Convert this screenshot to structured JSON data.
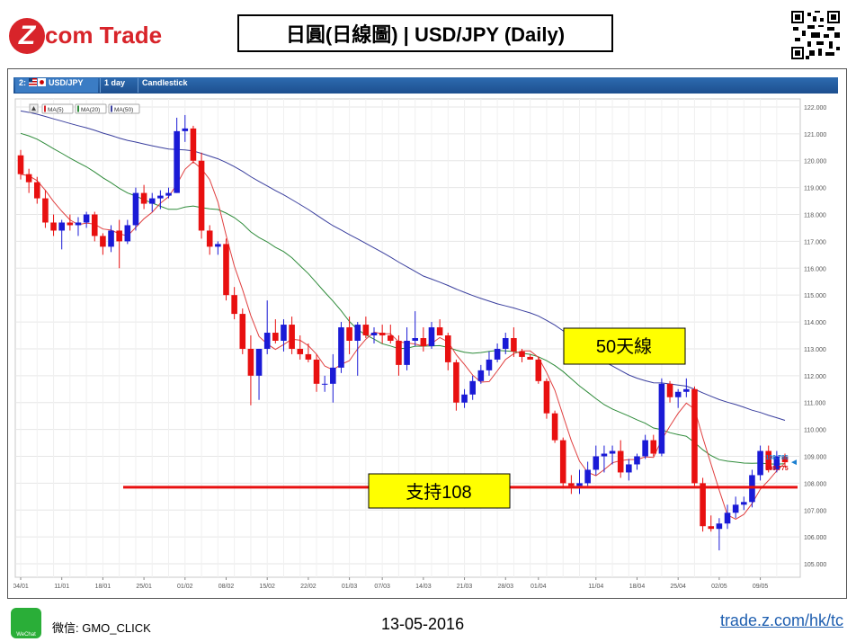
{
  "header": {
    "logo_text": "com Trade",
    "logo_letter": "Z",
    "title": "日圓(日線圖) | USD/JPY (Daily)"
  },
  "chart_toolbar": {
    "slot": "2:",
    "symbol": "USD/JPY",
    "interval": "1 day",
    "chart_type": "Candlestick"
  },
  "legend": {
    "items": [
      {
        "label": "MA(5)",
        "color": "#d8242a"
      },
      {
        "label": "MA(20)",
        "color": "#2e8b3a"
      },
      {
        "label": "MA(50)",
        "color": "#3a3f9e"
      }
    ]
  },
  "annotations": {
    "ma50_label": "50天線",
    "support_label": "支持108"
  },
  "price_tags": {
    "upper": "108.785",
    "lower": "108.775"
  },
  "footer": {
    "wechat": "微信: GMO_CLICK",
    "wechat_icon_label": "WeChat",
    "date": "13-05-2016",
    "link": "trade.z.com/hk/tc"
  },
  "colors": {
    "up": "#1a1ad6",
    "down": "#e81010",
    "ma5": "#e04040",
    "ma20": "#2e8b3a",
    "ma50": "#3a3f9e",
    "support": "#e81010",
    "label_bg": "#ffff00"
  },
  "chart_data": {
    "type": "candlestick",
    "symbol": "USD/JPY",
    "interval": "1 day",
    "ylim": [
      104.5,
      122.3
    ],
    "y_ticks": [
      "105.000",
      "106.000",
      "107.000",
      "108.000",
      "109.000",
      "110.000",
      "111.000",
      "112.000",
      "113.000",
      "114.000",
      "115.000",
      "116.000",
      "117.000",
      "118.000",
      "119.000",
      "120.000",
      "121.000",
      "122.000"
    ],
    "x_tick_labels": [
      "04/01",
      "11/01",
      "18/01",
      "25/01",
      "01/02",
      "08/02",
      "15/02",
      "22/02",
      "01/03",
      "07/03",
      "14/03",
      "21/03",
      "28/03",
      "01/04",
      "11/04",
      "18/04",
      "25/04",
      "02/05",
      "09/05"
    ],
    "x_tick_index": [
      0,
      5,
      10,
      15,
      20,
      25,
      30,
      35,
      40,
      44,
      49,
      54,
      59,
      63,
      70,
      75,
      80,
      85,
      90
    ],
    "support_level": 107.85,
    "candles": [
      {
        "o": 120.2,
        "h": 120.4,
        "l": 119.3,
        "c": 119.5
      },
      {
        "o": 119.5,
        "h": 119.7,
        "l": 118.8,
        "c": 119.2
      },
      {
        "o": 119.2,
        "h": 119.4,
        "l": 118.4,
        "c": 118.6
      },
      {
        "o": 118.6,
        "h": 118.9,
        "l": 117.5,
        "c": 117.7
      },
      {
        "o": 117.7,
        "h": 118.0,
        "l": 117.2,
        "c": 117.4
      },
      {
        "o": 117.4,
        "h": 117.8,
        "l": 116.7,
        "c": 117.7
      },
      {
        "o": 117.7,
        "h": 118.0,
        "l": 117.4,
        "c": 117.6
      },
      {
        "o": 117.6,
        "h": 117.9,
        "l": 117.2,
        "c": 117.7
      },
      {
        "o": 117.7,
        "h": 118.1,
        "l": 117.5,
        "c": 118.0
      },
      {
        "o": 118.0,
        "h": 118.1,
        "l": 117.0,
        "c": 117.2
      },
      {
        "o": 117.2,
        "h": 117.3,
        "l": 116.5,
        "c": 116.8
      },
      {
        "o": 116.8,
        "h": 117.6,
        "l": 116.6,
        "c": 117.4
      },
      {
        "o": 117.4,
        "h": 117.8,
        "l": 116.0,
        "c": 117.0
      },
      {
        "o": 117.0,
        "h": 117.8,
        "l": 116.9,
        "c": 117.6
      },
      {
        "o": 117.6,
        "h": 119.0,
        "l": 117.4,
        "c": 118.8
      },
      {
        "o": 118.8,
        "h": 119.1,
        "l": 118.2,
        "c": 118.4
      },
      {
        "o": 118.4,
        "h": 118.8,
        "l": 118.1,
        "c": 118.6
      },
      {
        "o": 118.6,
        "h": 118.9,
        "l": 118.2,
        "c": 118.7
      },
      {
        "o": 118.7,
        "h": 119.0,
        "l": 118.6,
        "c": 118.8
      },
      {
        "o": 118.8,
        "h": 121.6,
        "l": 118.8,
        "c": 121.1
      },
      {
        "o": 121.1,
        "h": 121.7,
        "l": 120.7,
        "c": 121.2
      },
      {
        "o": 121.2,
        "h": 121.3,
        "l": 119.9,
        "c": 120.0
      },
      {
        "o": 120.0,
        "h": 120.3,
        "l": 117.1,
        "c": 117.4
      },
      {
        "o": 117.4,
        "h": 117.6,
        "l": 116.5,
        "c": 116.8
      },
      {
        "o": 116.8,
        "h": 117.0,
        "l": 116.5,
        "c": 116.9
      },
      {
        "o": 116.9,
        "h": 117.1,
        "l": 114.8,
        "c": 115.0
      },
      {
        "o": 115.0,
        "h": 115.3,
        "l": 114.1,
        "c": 114.3
      },
      {
        "o": 114.3,
        "h": 114.5,
        "l": 112.8,
        "c": 113.0
      },
      {
        "o": 113.0,
        "h": 113.5,
        "l": 110.9,
        "c": 112.0
      },
      {
        "o": 112.0,
        "h": 113.0,
        "l": 111.1,
        "c": 113.0
      },
      {
        "o": 113.0,
        "h": 114.8,
        "l": 112.8,
        "c": 113.6
      },
      {
        "o": 113.6,
        "h": 114.1,
        "l": 113.2,
        "c": 113.3
      },
      {
        "o": 113.3,
        "h": 114.1,
        "l": 112.9,
        "c": 113.9
      },
      {
        "o": 113.9,
        "h": 114.2,
        "l": 112.8,
        "c": 113.0
      },
      {
        "o": 113.0,
        "h": 113.5,
        "l": 112.6,
        "c": 112.8
      },
      {
        "o": 112.8,
        "h": 113.2,
        "l": 112.5,
        "c": 112.6
      },
      {
        "o": 112.6,
        "h": 112.8,
        "l": 111.4,
        "c": 111.7
      },
      {
        "o": 111.7,
        "h": 112.0,
        "l": 111.4,
        "c": 111.7
      },
      {
        "o": 111.7,
        "h": 112.8,
        "l": 111.0,
        "c": 112.3
      },
      {
        "o": 112.3,
        "h": 114.0,
        "l": 112.1,
        "c": 113.8
      },
      {
        "o": 113.8,
        "h": 114.2,
        "l": 112.8,
        "c": 113.3
      },
      {
        "o": 113.3,
        "h": 114.0,
        "l": 112.0,
        "c": 113.9
      },
      {
        "o": 113.9,
        "h": 114.2,
        "l": 113.4,
        "c": 113.5
      },
      {
        "o": 113.5,
        "h": 113.8,
        "l": 113.2,
        "c": 113.6
      },
      {
        "o": 113.6,
        "h": 113.9,
        "l": 113.2,
        "c": 113.5
      },
      {
        "o": 113.5,
        "h": 113.9,
        "l": 113.2,
        "c": 113.3
      },
      {
        "o": 113.3,
        "h": 113.5,
        "l": 112.0,
        "c": 112.4
      },
      {
        "o": 112.4,
        "h": 113.8,
        "l": 112.2,
        "c": 113.3
      },
      {
        "o": 113.3,
        "h": 114.4,
        "l": 113.1,
        "c": 113.4
      },
      {
        "o": 113.4,
        "h": 113.8,
        "l": 112.9,
        "c": 113.1
      },
      {
        "o": 113.1,
        "h": 114.0,
        "l": 113.0,
        "c": 113.8
      },
      {
        "o": 113.8,
        "h": 114.1,
        "l": 113.5,
        "c": 113.5
      },
      {
        "o": 113.5,
        "h": 113.6,
        "l": 112.2,
        "c": 112.5
      },
      {
        "o": 112.5,
        "h": 112.6,
        "l": 110.7,
        "c": 111.0
      },
      {
        "o": 111.0,
        "h": 111.5,
        "l": 110.8,
        "c": 111.3
      },
      {
        "o": 111.3,
        "h": 112.0,
        "l": 111.1,
        "c": 111.8
      },
      {
        "o": 111.8,
        "h": 112.4,
        "l": 111.7,
        "c": 112.2
      },
      {
        "o": 112.2,
        "h": 112.9,
        "l": 112.0,
        "c": 112.6
      },
      {
        "o": 112.6,
        "h": 113.2,
        "l": 112.5,
        "c": 113.0
      },
      {
        "o": 113.0,
        "h": 113.6,
        "l": 112.8,
        "c": 113.4
      },
      {
        "o": 113.4,
        "h": 113.8,
        "l": 112.7,
        "c": 112.9
      },
      {
        "o": 112.9,
        "h": 113.0,
        "l": 112.5,
        "c": 112.7
      },
      {
        "o": 112.7,
        "h": 112.8,
        "l": 112.6,
        "c": 112.6
      },
      {
        "o": 112.6,
        "h": 112.7,
        "l": 111.7,
        "c": 111.8
      },
      {
        "o": 111.8,
        "h": 111.9,
        "l": 110.4,
        "c": 110.6
      },
      {
        "o": 110.6,
        "h": 110.7,
        "l": 109.5,
        "c": 109.6
      },
      {
        "o": 109.6,
        "h": 109.7,
        "l": 107.8,
        "c": 108.0
      },
      {
        "o": 108.0,
        "h": 108.3,
        "l": 107.6,
        "c": 107.9
      },
      {
        "o": 107.9,
        "h": 108.5,
        "l": 107.6,
        "c": 108.0
      },
      {
        "o": 108.0,
        "h": 108.8,
        "l": 107.9,
        "c": 108.5
      },
      {
        "o": 108.5,
        "h": 109.4,
        "l": 108.3,
        "c": 109.0
      },
      {
        "o": 109.0,
        "h": 109.4,
        "l": 108.4,
        "c": 109.1
      },
      {
        "o": 109.1,
        "h": 109.4,
        "l": 108.7,
        "c": 109.2
      },
      {
        "o": 109.2,
        "h": 109.6,
        "l": 108.2,
        "c": 108.4
      },
      {
        "o": 108.4,
        "h": 108.9,
        "l": 108.1,
        "c": 108.7
      },
      {
        "o": 108.7,
        "h": 109.1,
        "l": 108.5,
        "c": 109.0
      },
      {
        "o": 109.0,
        "h": 109.8,
        "l": 108.9,
        "c": 109.6
      },
      {
        "o": 109.6,
        "h": 109.8,
        "l": 109.0,
        "c": 109.1
      },
      {
        "o": 109.1,
        "h": 111.9,
        "l": 109.0,
        "c": 111.7
      },
      {
        "o": 111.7,
        "h": 111.8,
        "l": 111.0,
        "c": 111.2
      },
      {
        "o": 111.2,
        "h": 111.5,
        "l": 110.8,
        "c": 111.4
      },
      {
        "o": 111.4,
        "h": 111.9,
        "l": 111.2,
        "c": 111.5
      },
      {
        "o": 111.5,
        "h": 111.6,
        "l": 107.9,
        "c": 108.0
      },
      {
        "o": 108.0,
        "h": 108.2,
        "l": 106.2,
        "c": 106.4
      },
      {
        "o": 106.4,
        "h": 106.8,
        "l": 106.2,
        "c": 106.3
      },
      {
        "o": 106.3,
        "h": 106.7,
        "l": 105.5,
        "c": 106.5
      },
      {
        "o": 106.5,
        "h": 107.2,
        "l": 106.3,
        "c": 106.9
      },
      {
        "o": 106.9,
        "h": 107.5,
        "l": 106.7,
        "c": 107.2
      },
      {
        "o": 107.2,
        "h": 107.5,
        "l": 107.0,
        "c": 107.3
      },
      {
        "o": 107.3,
        "h": 108.5,
        "l": 107.1,
        "c": 108.3
      },
      {
        "o": 108.3,
        "h": 109.4,
        "l": 108.1,
        "c": 109.2
      },
      {
        "o": 109.2,
        "h": 109.4,
        "l": 108.4,
        "c": 108.5
      },
      {
        "o": 108.5,
        "h": 109.2,
        "l": 108.4,
        "c": 109.0
      },
      {
        "o": 109.0,
        "h": 109.1,
        "l": 108.6,
        "c": 108.78
      }
    ],
    "ma50_start_value": 121.9,
    "ma20_start_value": 121.1
  }
}
